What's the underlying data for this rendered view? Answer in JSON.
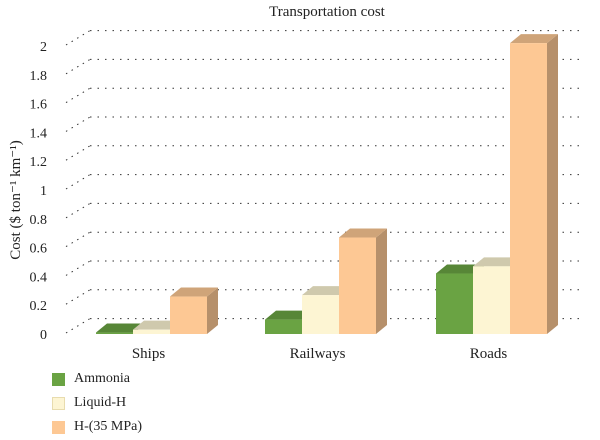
{
  "chart_data": {
    "type": "bar",
    "title": "Transportation cost",
    "ylabel": "Cost ($ ton⁻¹ km⁻¹)",
    "xlabel": "",
    "categories": [
      "Ships",
      "Railways",
      "Roads"
    ],
    "ylim": [
      0,
      2
    ],
    "yticks": [
      "0",
      "0.2",
      "0.4",
      "0.6",
      "0.8",
      "1",
      "1.2",
      "1.4",
      "1.6",
      "1.8",
      "2"
    ],
    "grid": true,
    "legend": "bottom-left",
    "series": [
      {
        "name": "Ammonia",
        "color": "#6aa343",
        "values": [
          0.01,
          0.1,
          0.42
        ]
      },
      {
        "name": "Liquid-H",
        "color": "#fdf5d3",
        "values": [
          0.03,
          0.27,
          0.47
        ]
      },
      {
        "name": "H-(35 MPa)",
        "color": "#fdc894",
        "values": [
          0.26,
          0.67,
          2.02
        ]
      }
    ]
  }
}
